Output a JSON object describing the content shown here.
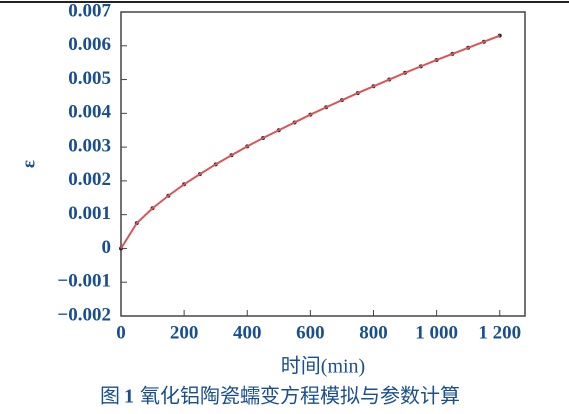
{
  "chart_data": {
    "type": "scatter-line",
    "x_label": "时间(min)",
    "y_label": "ε",
    "caption_prefix": "图",
    "caption_number": "1",
    "caption": "氧化铝陶瓷蠕变方程模拟与参数计算",
    "x": [
      0,
      50,
      100,
      150,
      200,
      250,
      300,
      350,
      400,
      450,
      500,
      550,
      600,
      650,
      700,
      750,
      800,
      850,
      900,
      950,
      1000,
      1050,
      1100,
      1150,
      1200
    ],
    "series": [
      {
        "color": "#2a2a2a",
        "mark": "points",
        "values": [
          0,
          0.00075,
          0.00119,
          0.00156,
          0.0019,
          0.0022,
          0.00249,
          0.00276,
          0.00302,
          0.00327,
          0.0035,
          0.00373,
          0.00396,
          0.00418,
          0.00439,
          0.0046,
          0.0048,
          0.005,
          0.0052,
          0.00539,
          0.00558,
          0.00576,
          0.00594,
          0.00612,
          0.0063
        ]
      },
      {
        "color": "#d9565a",
        "mark": "line",
        "values": [
          0,
          0.00075,
          0.00119,
          0.00156,
          0.0019,
          0.0022,
          0.00249,
          0.00276,
          0.00302,
          0.00327,
          0.0035,
          0.00373,
          0.00396,
          0.00418,
          0.00439,
          0.0046,
          0.0048,
          0.005,
          0.0052,
          0.00539,
          0.00558,
          0.00576,
          0.00594,
          0.00612,
          0.0063
        ]
      }
    ],
    "xlim": [
      0,
      1280
    ],
    "xticks": [
      0,
      200,
      400,
      600,
      800,
      {
        "value": 1000,
        "label": "1 000"
      },
      {
        "value": 1200,
        "label": "1 200"
      }
    ],
    "ylim": [
      -0.002,
      0.007
    ],
    "yticks": [
      {
        "value": -0.002,
        "label": "−0.002"
      },
      {
        "value": -0.001,
        "label": "−0.001"
      },
      0,
      0.001,
      0.002,
      0.003,
      0.004,
      0.005,
      0.006,
      0.007
    ],
    "grid": false
  }
}
